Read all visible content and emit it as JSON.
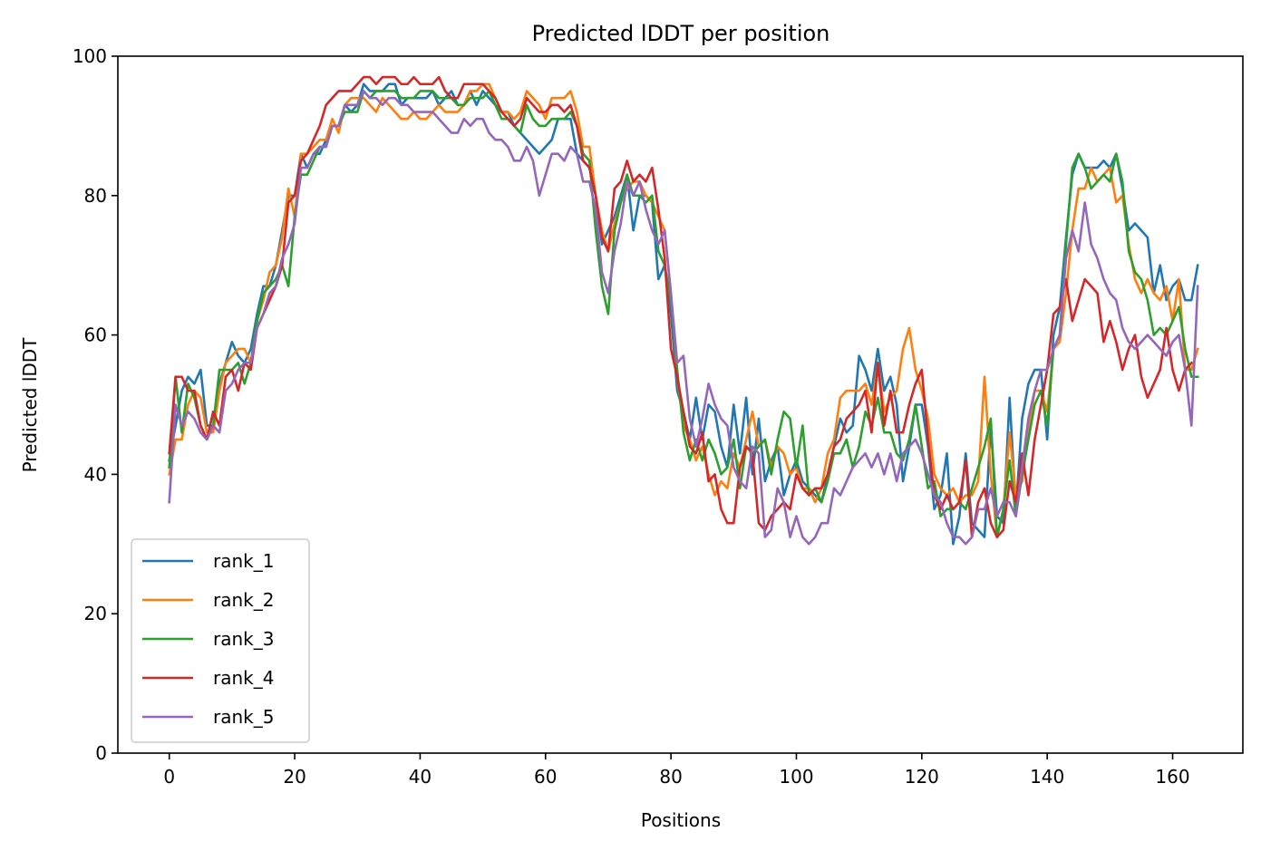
{
  "chart_data": {
    "type": "line",
    "title": "Predicted lDDT per position",
    "xlabel": "Positions",
    "ylabel": "Predicted lDDT",
    "xlim": [
      -8.2,
      171.2
    ],
    "ylim": [
      0,
      100
    ],
    "xticks": [
      0,
      20,
      40,
      60,
      80,
      100,
      120,
      140,
      160
    ],
    "yticks": [
      0,
      20,
      40,
      60,
      80,
      100
    ],
    "grid": false,
    "legend_position": "lower-left",
    "x_start": 0,
    "series": [
      {
        "name": "rank_1",
        "color": "#1f77b4",
        "values": [
          42,
          47,
          52,
          54,
          53,
          55,
          47,
          47,
          53,
          56,
          59,
          57,
          56,
          58,
          63,
          67,
          67,
          70,
          75,
          80,
          80,
          86,
          84,
          86,
          86,
          88,
          90,
          90,
          93,
          92,
          93,
          96,
          95,
          95,
          95,
          96,
          96,
          93,
          94,
          94,
          94,
          94,
          95,
          93,
          94,
          95,
          93,
          93,
          95,
          93,
          95,
          94,
          93,
          92,
          92,
          90,
          89,
          88,
          87,
          86,
          87,
          88,
          91,
          91,
          91,
          86,
          85,
          84,
          80,
          73,
          75,
          77,
          80,
          83,
          75,
          80,
          80,
          79,
          68,
          70,
          63,
          52,
          49,
          45,
          51,
          45,
          50,
          49,
          44,
          41,
          50,
          43,
          51,
          40,
          48,
          39,
          42,
          44,
          37,
          40,
          42,
          39,
          38,
          37,
          36,
          40,
          44,
          48,
          46,
          47,
          57,
          55,
          52,
          58,
          52,
          54,
          50,
          39,
          44,
          50,
          50,
          44,
          35,
          37,
          43,
          30,
          34,
          43,
          33,
          32,
          31,
          47,
          34,
          33,
          51,
          35,
          48,
          53,
          55,
          55,
          45,
          60,
          64,
          74,
          83,
          86,
          84,
          84,
          84,
          85,
          84,
          86,
          81,
          75,
          76,
          75,
          74,
          66,
          70,
          65,
          67,
          68,
          65,
          65,
          70
        ]
      },
      {
        "name": "rank_2",
        "color": "#ff7f0e",
        "values": [
          40,
          45,
          45,
          50,
          52,
          51,
          46,
          46,
          52,
          56,
          57,
          58,
          58,
          56,
          62,
          65,
          69,
          70,
          74,
          81,
          77,
          86,
          86,
          87,
          88,
          88,
          91,
          89,
          93,
          94,
          94,
          94,
          93,
          92,
          94,
          93,
          92,
          91,
          91,
          92,
          91,
          91,
          92,
          93,
          92,
          92,
          92,
          93,
          95,
          95,
          96,
          96,
          94,
          92,
          92,
          91,
          92,
          95,
          94,
          93,
          91,
          94,
          94,
          94,
          95,
          92,
          87,
          87,
          80,
          75,
          72,
          76,
          79,
          81,
          82,
          82,
          80,
          79,
          77,
          75,
          66,
          54,
          47,
          45,
          42,
          44,
          40,
          37,
          39,
          38,
          43,
          41,
          45,
          49,
          44,
          45,
          41,
          44,
          43,
          40,
          41,
          38,
          38,
          36,
          38,
          43,
          45,
          51,
          52,
          52,
          52,
          53,
          50,
          56,
          49,
          51,
          52,
          58,
          61,
          55,
          52,
          48,
          40,
          38,
          37,
          38,
          36,
          37,
          37,
          39,
          54,
          40,
          31,
          35,
          46,
          37,
          39,
          46,
          52,
          52,
          49,
          58,
          59,
          66,
          75,
          81,
          81,
          84,
          82,
          83,
          84,
          79,
          80,
          73,
          68,
          66,
          68,
          66,
          65,
          67,
          62,
          68,
          55,
          55,
          58
        ]
      },
      {
        "name": "rank_3",
        "color": "#2ca02c",
        "values": [
          41,
          54,
          46,
          53,
          51,
          47,
          45,
          47,
          55,
          55,
          55,
          56,
          53,
          56,
          62,
          66,
          67,
          68,
          70,
          67,
          77,
          83,
          83,
          85,
          87,
          87,
          90,
          90,
          92,
          92,
          92,
          95,
          94,
          95,
          95,
          95,
          95,
          94,
          94,
          94,
          95,
          95,
          95,
          94,
          94,
          94,
          93,
          93,
          94,
          94,
          94,
          95,
          93,
          91,
          91,
          90,
          89,
          93,
          91,
          90,
          90,
          91,
          91,
          91,
          92,
          90,
          86,
          85,
          75,
          67,
          63,
          75,
          79,
          83,
          80,
          80,
          79,
          80,
          72,
          70,
          65,
          55,
          46,
          42,
          45,
          42,
          45,
          43,
          40,
          41,
          45,
          38,
          44,
          43,
          44,
          45,
          40,
          45,
          49,
          48,
          41,
          47,
          37,
          38,
          36,
          39,
          43,
          43,
          45,
          41,
          44,
          49,
          47,
          51,
          46,
          46,
          43,
          42,
          45,
          50,
          44,
          38,
          39,
          34,
          35,
          35,
          36,
          35,
          38,
          41,
          44,
          48,
          31,
          35,
          42,
          34,
          40,
          45,
          50,
          52,
          47,
          58,
          60,
          73,
          84,
          86,
          84,
          81,
          82,
          83,
          82,
          86,
          82,
          72,
          69,
          68,
          65,
          60,
          61,
          60,
          62,
          64,
          58,
          54,
          54
        ]
      },
      {
        "name": "rank_4",
        "color": "#d62728",
        "values": [
          43,
          54,
          54,
          52,
          52,
          47,
          45,
          49,
          47,
          54,
          55,
          52,
          56,
          55,
          61,
          63,
          65,
          67,
          70,
          79,
          80,
          85,
          86,
          88,
          90,
          93,
          94,
          95,
          95,
          95,
          96,
          97,
          97,
          96,
          97,
          97,
          97,
          96,
          96,
          97,
          96,
          96,
          96,
          97,
          95,
          94,
          94,
          96,
          96,
          96,
          96,
          95,
          94,
          92,
          91,
          90,
          91,
          94,
          93,
          92,
          92,
          93,
          93,
          92,
          93,
          90,
          85,
          84,
          80,
          74,
          72,
          81,
          82,
          85,
          82,
          83,
          82,
          84,
          78,
          71,
          58,
          54,
          49,
          44,
          43,
          46,
          39,
          40,
          35,
          33,
          33,
          41,
          44,
          43,
          33,
          32,
          34,
          35,
          36,
          35,
          40,
          38,
          37,
          38,
          38,
          40,
          44,
          45,
          48,
          49,
          50,
          52,
          46,
          56,
          47,
          52,
          46,
          46,
          50,
          53,
          55,
          45,
          37,
          35,
          37,
          35,
          36,
          42,
          31,
          36,
          38,
          33,
          31,
          32,
          39,
          36,
          43,
          37,
          45,
          50,
          55,
          63,
          64,
          68,
          62,
          65,
          68,
          67,
          66,
          59,
          62,
          59,
          55,
          58,
          60,
          54,
          51,
          53,
          55,
          61,
          55,
          52,
          55,
          56
        ]
      },
      {
        "name": "rank_5",
        "color": "#9467bd",
        "values": [
          36,
          50,
          47,
          49,
          48,
          46,
          45,
          47,
          46,
          52,
          53,
          55,
          56,
          56,
          61,
          63,
          66,
          67,
          71,
          73,
          76,
          84,
          84,
          86,
          87,
          87,
          90,
          90,
          93,
          93,
          93,
          95,
          94,
          94,
          93,
          94,
          94,
          93,
          93,
          92,
          92,
          92,
          92,
          91,
          90,
          89,
          89,
          91,
          90,
          91,
          91,
          89,
          88,
          88,
          87,
          85,
          85,
          87,
          85,
          80,
          83,
          86,
          86,
          85,
          87,
          86,
          82,
          82,
          78,
          69,
          66,
          72,
          76,
          82,
          80,
          82,
          78,
          75,
          73,
          75,
          66,
          56,
          57,
          48,
          44,
          48,
          53,
          50,
          48,
          47,
          41,
          39,
          38,
          44,
          43,
          31,
          32,
          38,
          36,
          31,
          34,
          31,
          30,
          31,
          33,
          33,
          38,
          37,
          39,
          41,
          42,
          43,
          41,
          43,
          40,
          43,
          39,
          43,
          44,
          45,
          43,
          40,
          37,
          36,
          33,
          31,
          31,
          30,
          31,
          35,
          35,
          38,
          34,
          36,
          36,
          34,
          41,
          48,
          52,
          55,
          55,
          58,
          60,
          71,
          75,
          72,
          79,
          73,
          71,
          68,
          66,
          65,
          61,
          59,
          58,
          59,
          60,
          59,
          58,
          57,
          59,
          60,
          55,
          47,
          67
        ]
      }
    ]
  }
}
